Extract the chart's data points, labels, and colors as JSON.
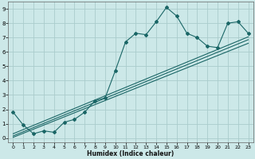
{
  "title": "",
  "xlabel": "Humidex (Indice chaleur)",
  "ylabel": "",
  "bg_color": "#cce8e8",
  "grid_color": "#aacccc",
  "line_color": "#1a6666",
  "xlim": [
    -0.5,
    23.5
  ],
  "ylim": [
    -0.3,
    9.5
  ],
  "xticks": [
    0,
    1,
    2,
    3,
    4,
    5,
    6,
    7,
    8,
    9,
    10,
    11,
    12,
    13,
    14,
    15,
    16,
    17,
    18,
    19,
    20,
    21,
    22,
    23
  ],
  "yticks": [
    0,
    1,
    2,
    3,
    4,
    5,
    6,
    7,
    8,
    9
  ],
  "curve_x": [
    0,
    1,
    2,
    3,
    4,
    5,
    6,
    7,
    8,
    9,
    10,
    11,
    12,
    13,
    14,
    15,
    16,
    17,
    18,
    19,
    20,
    21,
    22,
    23
  ],
  "curve_y": [
    1.8,
    0.9,
    0.3,
    0.5,
    0.4,
    1.1,
    1.3,
    1.8,
    2.6,
    2.8,
    4.7,
    6.7,
    7.3,
    7.2,
    8.1,
    9.1,
    8.5,
    7.3,
    7.0,
    6.4,
    6.3,
    8.0,
    8.1,
    7.3
  ],
  "line1_x": [
    0,
    23
  ],
  "line1_y": [
    0.15,
    6.85
  ],
  "line2_x": [
    0,
    23
  ],
  "line2_y": [
    0.3,
    7.05
  ],
  "line3_x": [
    0,
    23
  ],
  "line3_y": [
    0.05,
    6.6
  ]
}
